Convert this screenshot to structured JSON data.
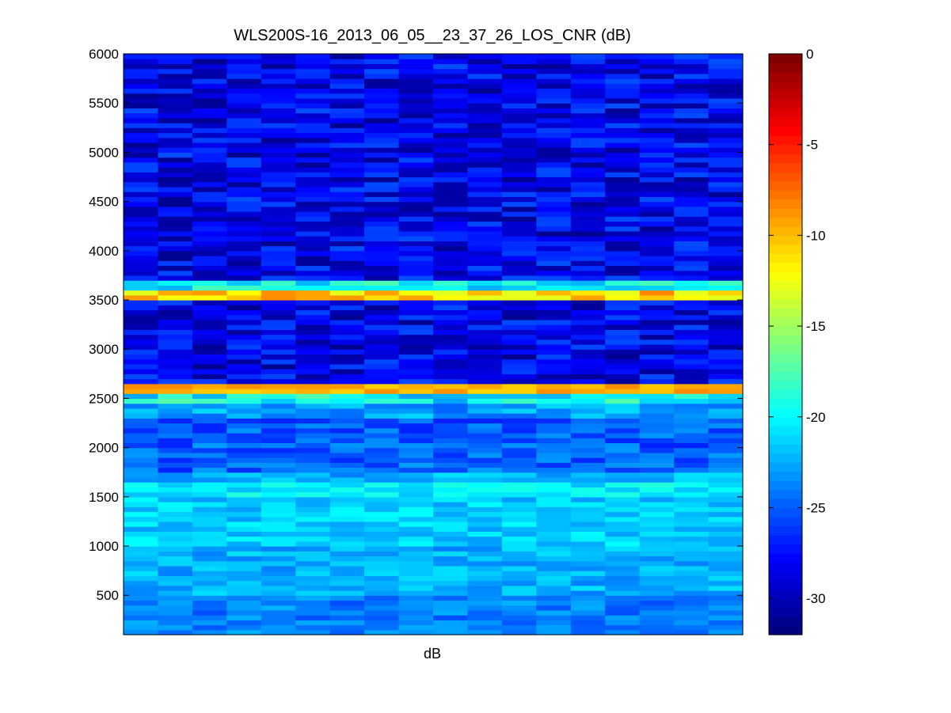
{
  "chart_data": {
    "type": "heatmap",
    "title": "WLS200S-16_2013_06_05__23_37_26_LOS_CNR (dB)",
    "xlabel": "dB",
    "ylabel": "",
    "x_columns": 18,
    "row_height_m": 50,
    "ylim": [
      100,
      6000
    ],
    "y_ticks": [
      500,
      1000,
      1500,
      2000,
      2500,
      3000,
      3500,
      4000,
      4500,
      5000,
      5500,
      6000
    ],
    "y_tick_labels": [
      "500",
      "1000",
      "1500",
      "2000",
      "2500",
      "3000",
      "3500",
      "4000",
      "4500",
      "5000",
      "5500",
      "6000"
    ],
    "colormap": "jet",
    "color_range": [
      -32,
      0
    ],
    "colorbar_ticks": [
      0,
      -5,
      -10,
      -15,
      -20,
      -25,
      -30
    ],
    "colorbar_tick_labels": [
      "0",
      "-5",
      "-10",
      "-15",
      "-20",
      "-25",
      "-30"
    ],
    "grid": false,
    "bands": [
      {
        "from": 100,
        "to": 500,
        "cnr_db": -24
      },
      {
        "from": 500,
        "to": 1000,
        "cnr_db": -22.5
      },
      {
        "from": 1000,
        "to": 1500,
        "cnr_db": -21.5
      },
      {
        "from": 1500,
        "to": 1650,
        "cnr_db": -20.5
      },
      {
        "from": 1650,
        "to": 1750,
        "cnr_db": -22.5
      },
      {
        "from": 1750,
        "to": 2300,
        "cnr_db": -25
      },
      {
        "from": 2300,
        "to": 2450,
        "cnr_db": -23
      },
      {
        "from": 2450,
        "to": 2550,
        "cnr_db": -20
      },
      {
        "from": 2550,
        "to": 2650,
        "cnr_db": -9.5
      },
      {
        "from": 2650,
        "to": 3500,
        "cnr_db": -28.5
      },
      {
        "from": 3500,
        "to": 3600,
        "cnr_db": -10.5
      },
      {
        "from": 3600,
        "to": 3700,
        "cnr_db": -20
      },
      {
        "from": 3700,
        "to": 6000,
        "cnr_db": -28.5
      }
    ]
  }
}
